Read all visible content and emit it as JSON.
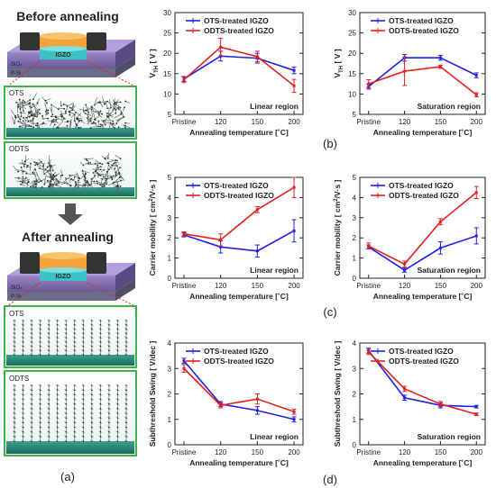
{
  "left_panel": {
    "before_title": "Before annealing",
    "after_title": "After annealing",
    "device_label": "IGZO",
    "substrate_top": "SiO₂",
    "substrate_bottom": "P-Si",
    "box1_label": "OTS",
    "box2_label": "ODTS",
    "box3_label": "OTS",
    "box4_label": "ODTS",
    "panel_letter": "(a)"
  },
  "panel_letters": [
    "(b)",
    "(c)",
    "(d)"
  ],
  "colors": {
    "ots": "#1f1fe6",
    "odts": "#e62020",
    "green_frame": "#3cb44b",
    "teal_surface": "#2f8f7f",
    "dashed_red": "#e0231c"
  },
  "chart_data": [
    {
      "type": "line",
      "x": [
        "Pristine",
        "120",
        "150",
        "200"
      ],
      "xlabel": "Annealing temperature [˚C]",
      "ylabel": "V_TH [V]",
      "ylim": [
        5,
        30
      ],
      "yticks": [
        5,
        10,
        15,
        20,
        25,
        30
      ],
      "annotation": "Linear region",
      "legend_position": "top",
      "series": [
        {
          "name": "OTS-treated IGZO",
          "values": [
            13.7,
            19.3,
            18.8,
            15.8
          ],
          "errors": [
            0.6,
            1.2,
            1.2,
            0.8
          ]
        },
        {
          "name": "ODTS-treated IGZO",
          "values": [
            13.5,
            21.5,
            19.2,
            12.0
          ],
          "errors": [
            0.7,
            2.2,
            1.3,
            1.6
          ]
        }
      ]
    },
    {
      "type": "line",
      "x": [
        "Pristine",
        "120",
        "150",
        "200"
      ],
      "xlabel": "Annealing temperature [˚C]",
      "ylabel": "V_TH [V]",
      "ylim": [
        5,
        30
      ],
      "yticks": [
        5,
        10,
        15,
        20,
        25,
        30
      ],
      "annotation": "Saturation region",
      "legend_position": "top",
      "series": [
        {
          "name": "OTS-treated IGZO",
          "values": [
            11.8,
            18.9,
            18.9,
            14.6
          ],
          "errors": [
            0.6,
            0.8,
            0.6,
            0.6
          ]
        },
        {
          "name": "ODTS-treated IGZO",
          "values": [
            12.5,
            15.6,
            16.7,
            9.8
          ],
          "errors": [
            1.0,
            3.5,
            0.4,
            0.5
          ]
        }
      ]
    },
    {
      "type": "line",
      "x": [
        "Pristine",
        "120",
        "150",
        "200"
      ],
      "xlabel": "Annealing temperature [˚C]",
      "ylabel": "Carrier mobility [cm²/V·s]",
      "ylim": [
        0,
        5
      ],
      "yticks": [
        0,
        1,
        2,
        3,
        4,
        5
      ],
      "annotation": "Linear region",
      "legend_position": "top",
      "series": [
        {
          "name": "OTS-treated IGZO",
          "values": [
            2.15,
            1.55,
            1.35,
            2.35
          ],
          "errors": [
            0.1,
            0.3,
            0.3,
            0.55
          ]
        },
        {
          "name": "ODTS-treated IGZO",
          "values": [
            2.2,
            1.9,
            3.4,
            4.5
          ],
          "errors": [
            0.1,
            0.3,
            0.15,
            0.5
          ]
        }
      ]
    },
    {
      "type": "line",
      "x": [
        "Pristine",
        "120",
        "150",
        "200"
      ],
      "xlabel": "Annealing temperature [˚C]",
      "ylabel": "Carrier mobility [cm²/V·s]",
      "ylim": [
        0,
        5
      ],
      "yticks": [
        0,
        1,
        2,
        3,
        4,
        5
      ],
      "annotation": "Saturation region",
      "legend_position": "top",
      "series": [
        {
          "name": "OTS-treated IGZO",
          "values": [
            1.55,
            0.4,
            1.5,
            2.1
          ],
          "errors": [
            0.1,
            0.1,
            0.3,
            0.4
          ]
        },
        {
          "name": "ODTS-treated IGZO",
          "values": [
            1.6,
            0.7,
            2.8,
            4.25
          ],
          "errors": [
            0.15,
            0.15,
            0.15,
            0.3
          ]
        }
      ]
    },
    {
      "type": "line",
      "x": [
        "Pristine",
        "120",
        "150",
        "200"
      ],
      "xlabel": "Annealing temperature [˚C]",
      "ylabel": "Subthreshold Swing [V/dec]",
      "ylim": [
        0,
        4
      ],
      "yticks": [
        0,
        1,
        2,
        3,
        4
      ],
      "annotation": "Linear region",
      "legend_position": "top",
      "series": [
        {
          "name": "OTS-treated IGZO",
          "values": [
            3.3,
            1.6,
            1.35,
            1.0
          ],
          "errors": [
            0.1,
            0.1,
            0.15,
            0.1
          ]
        },
        {
          "name": "ODTS-treated IGZO",
          "values": [
            3.0,
            1.55,
            1.8,
            1.3
          ],
          "errors": [
            0.15,
            0.1,
            0.2,
            0.1
          ]
        }
      ]
    },
    {
      "type": "line",
      "x": [
        "Pristine",
        "120",
        "150",
        "200"
      ],
      "xlabel": "Annealing temperature [˚C]",
      "ylabel": "Subthreshold Swing [V/dec]",
      "ylim": [
        0,
        4
      ],
      "yticks": [
        0,
        1,
        2,
        3,
        4
      ],
      "annotation": "Saturation region",
      "legend_position": "top",
      "series": [
        {
          "name": "OTS-treated IGZO",
          "values": [
            3.7,
            1.85,
            1.55,
            1.5
          ],
          "errors": [
            0.1,
            0.1,
            0.1,
            0.05
          ]
        },
        {
          "name": "ODTS-treated IGZO",
          "values": [
            3.65,
            2.2,
            1.6,
            1.2
          ],
          "errors": [
            0.1,
            0.1,
            0.1,
            0.05
          ]
        }
      ]
    }
  ]
}
